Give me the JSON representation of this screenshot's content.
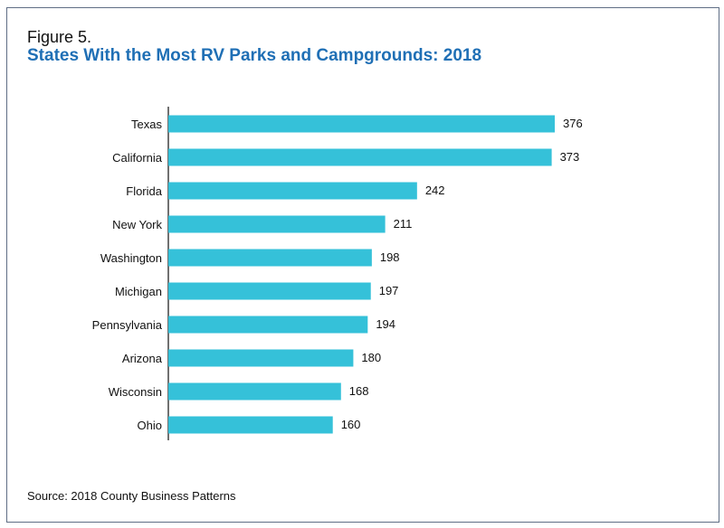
{
  "figure": {
    "label": "Figure 5.",
    "title": "States With the Most RV Parks and Campgrounds: 2018",
    "source": "Source: 2018 County Business Patterns"
  },
  "colors": {
    "bar": "#35c1d9",
    "title": "#1f6fb5",
    "axis": "#111111",
    "frame": "#5f6e85"
  },
  "chart_data": {
    "type": "bar",
    "orientation": "horizontal",
    "title": "States With the Most RV Parks and Campgrounds: 2018",
    "xlabel": "",
    "ylabel": "",
    "categories": [
      "Texas",
      "California",
      "Florida",
      "New York",
      "Washington",
      "Michigan",
      "Pennsylvania",
      "Arizona",
      "Wisconsin",
      "Ohio"
    ],
    "values": [
      376,
      373,
      242,
      211,
      198,
      197,
      194,
      180,
      168,
      160
    ],
    "data_labels": [
      "376",
      "373",
      "242",
      "211",
      "198",
      "197",
      "194",
      "180",
      "168",
      "160"
    ],
    "xlim": [
      0,
      376
    ],
    "grid": false,
    "legend": "none"
  }
}
